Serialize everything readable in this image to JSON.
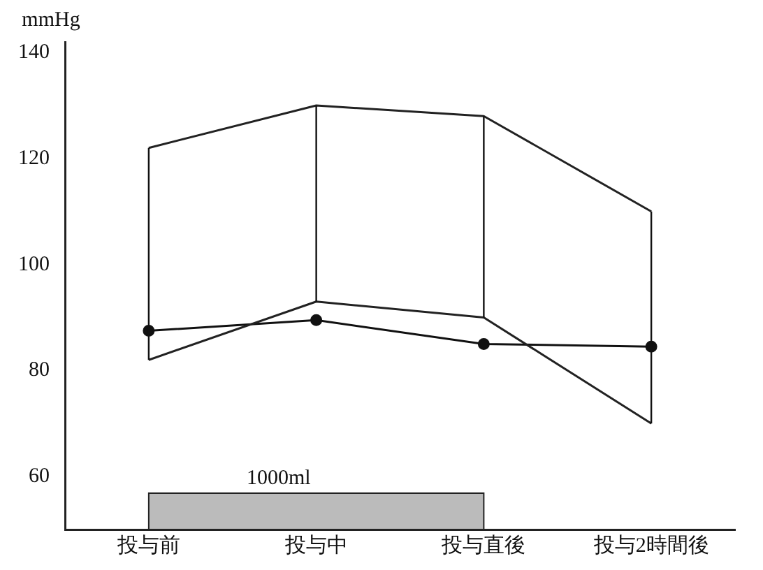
{
  "chart_data": {
    "type": "line",
    "ylabel": "mmHg",
    "categories": [
      "投与前",
      "投与中",
      "投与直後",
      "投与2時間後"
    ],
    "series": [
      {
        "color": "#222222",
        "values": [
          122,
          130,
          128,
          110
        ],
        "marker": "none"
      },
      {
        "color": "#222222",
        "values": [
          82,
          93,
          90,
          70
        ],
        "marker": "none"
      },
      {
        "color": "#111111",
        "values": [
          87.5,
          89.5,
          85,
          84.5
        ],
        "marker": "circle",
        "errors": [
          [
            82,
            122
          ],
          [
            93,
            130
          ],
          [
            90,
            128
          ],
          [
            70,
            110
          ]
        ]
      }
    ],
    "ylim": [
      50,
      142
    ],
    "yticks": [
      60,
      80,
      100,
      120,
      140
    ],
    "grid": false,
    "legend": false,
    "line_style": "solid",
    "bands": [
      {
        "axis": "x",
        "from": "投与前",
        "to": "投与直後",
        "label": "1000ml",
        "color": "#bbbbbb"
      }
    ]
  }
}
